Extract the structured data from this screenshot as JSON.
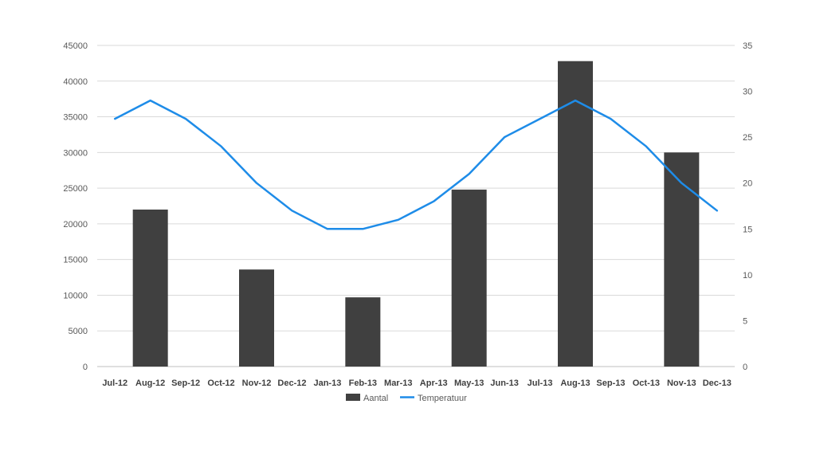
{
  "chart_data": {
    "type": "bar+line",
    "categories": [
      "Jul-12",
      "Aug-12",
      "Sep-12",
      "Oct-12",
      "Nov-12",
      "Dec-12",
      "Jan-13",
      "Feb-13",
      "Mar-13",
      "Apr-13",
      "May-13",
      "Jun-13",
      "Jul-13",
      "Aug-13",
      "Sep-13",
      "Oct-13",
      "Nov-13",
      "Dec-13"
    ],
    "series": [
      {
        "name": "Aantal",
        "kind": "bar",
        "axis": "left",
        "color": "#404040",
        "values": [
          null,
          22000,
          null,
          null,
          13600,
          null,
          null,
          9700,
          null,
          null,
          24800,
          null,
          null,
          42800,
          null,
          null,
          30000,
          null
        ]
      },
      {
        "name": "Temperatuur",
        "kind": "line",
        "axis": "right",
        "color": "#1e8ce8",
        "values": [
          27,
          29,
          27,
          24,
          20,
          17,
          15,
          15,
          16,
          18,
          21,
          25,
          27,
          29,
          27,
          24,
          20,
          17
        ]
      }
    ],
    "y_left": {
      "min": 0,
      "max": 45000,
      "step": 5000,
      "ticks": [
        "0",
        "5000",
        "10000",
        "15000",
        "20000",
        "25000",
        "30000",
        "35000",
        "40000",
        "45000"
      ]
    },
    "y_right": {
      "min": 0,
      "max": 35,
      "step": 5,
      "ticks": [
        "0",
        "5",
        "10",
        "15",
        "20",
        "25",
        "30",
        "35"
      ]
    },
    "grid": true,
    "legend_position": "bottom",
    "legend": [
      "Aantal",
      "Temperatuur"
    ]
  }
}
